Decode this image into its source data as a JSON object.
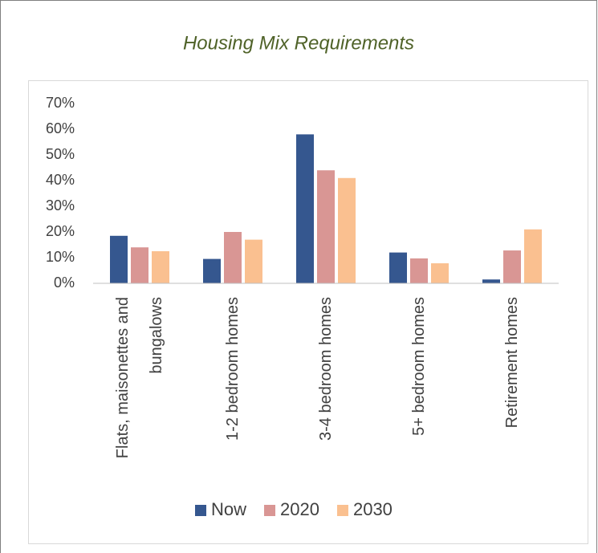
{
  "chart_data": {
    "type": "bar",
    "title": "Housing Mix Requirements",
    "categories": [
      "Flats, maisonettes and bungalows",
      "1-2 bedroom homes",
      "3-4 bedroom homes",
      "5+ bedroom homes",
      "Retirement homes"
    ],
    "series": [
      {
        "name": "Now",
        "color": "#35578f",
        "values": [
          18.5,
          9.5,
          58,
          12,
          1.5
        ]
      },
      {
        "name": "2020",
        "color": "#d99694",
        "values": [
          14,
          20,
          44,
          9.7,
          12.8
        ]
      },
      {
        "name": "2030",
        "color": "#fac090",
        "values": [
          12.5,
          17,
          41,
          7.8,
          21
        ]
      }
    ],
    "ylim": [
      0,
      70
    ],
    "yticks": [
      {
        "value": 0,
        "label": "0%"
      },
      {
        "value": 10,
        "label": "10%"
      },
      {
        "value": 20,
        "label": "20%"
      },
      {
        "value": 30,
        "label": "30%"
      },
      {
        "value": 40,
        "label": "40%"
      },
      {
        "value": 50,
        "label": "50%"
      },
      {
        "value": 60,
        "label": "60%"
      },
      {
        "value": 70,
        "label": "70%"
      }
    ],
    "grid": false,
    "legend": "bottom"
  }
}
